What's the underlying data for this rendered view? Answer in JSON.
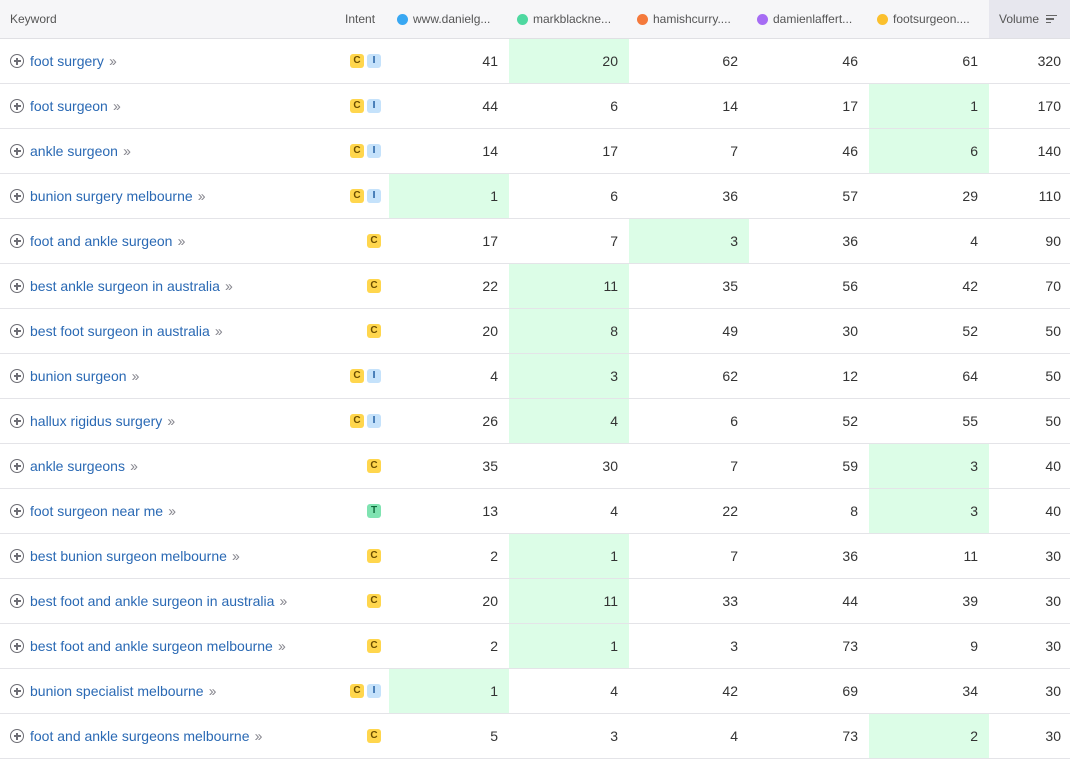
{
  "header": {
    "keyword": "Keyword",
    "intent": "Intent",
    "volume": "Volume",
    "domains": [
      {
        "name": "www.danielg...",
        "color": "#38a7f2"
      },
      {
        "name": "markblackne...",
        "color": "#4ed8a0"
      },
      {
        "name": "hamishcurry....",
        "color": "#f4793b"
      },
      {
        "name": "damienlaffert...",
        "color": "#a66cf4"
      },
      {
        "name": "footsurgeon....",
        "color": "#fbc02d"
      }
    ]
  },
  "rows": [
    {
      "keyword": "foot surgery",
      "intents": [
        "C",
        "I"
      ],
      "ranks": [
        "41",
        "20",
        "62",
        "46",
        "61"
      ],
      "best": 1,
      "volume": "320"
    },
    {
      "keyword": "foot surgeon",
      "intents": [
        "C",
        "I"
      ],
      "ranks": [
        "44",
        "6",
        "14",
        "17",
        "1"
      ],
      "best": 4,
      "volume": "170"
    },
    {
      "keyword": "ankle surgeon",
      "intents": [
        "C",
        "I"
      ],
      "ranks": [
        "14",
        "17",
        "7",
        "46",
        "6"
      ],
      "best": 4,
      "volume": "140"
    },
    {
      "keyword": "bunion surgery melbourne",
      "intents": [
        "C",
        "I"
      ],
      "ranks": [
        "1",
        "6",
        "36",
        "57",
        "29"
      ],
      "best": 0,
      "volume": "110"
    },
    {
      "keyword": "foot and ankle surgeon",
      "intents": [
        "C"
      ],
      "ranks": [
        "17",
        "7",
        "3",
        "36",
        "4"
      ],
      "best": 2,
      "volume": "90"
    },
    {
      "keyword": "best ankle surgeon in australia",
      "intents": [
        "C"
      ],
      "ranks": [
        "22",
        "11",
        "35",
        "56",
        "42"
      ],
      "best": 1,
      "volume": "70"
    },
    {
      "keyword": "best foot surgeon in australia",
      "intents": [
        "C"
      ],
      "ranks": [
        "20",
        "8",
        "49",
        "30",
        "52"
      ],
      "best": 1,
      "volume": "50"
    },
    {
      "keyword": "bunion surgeon",
      "intents": [
        "C",
        "I"
      ],
      "ranks": [
        "4",
        "3",
        "62",
        "12",
        "64"
      ],
      "best": 1,
      "volume": "50"
    },
    {
      "keyword": "hallux rigidus surgery",
      "intents": [
        "C",
        "I"
      ],
      "ranks": [
        "26",
        "4",
        "6",
        "52",
        "55"
      ],
      "best": 1,
      "volume": "50"
    },
    {
      "keyword": "ankle surgeons",
      "intents": [
        "C"
      ],
      "ranks": [
        "35",
        "30",
        "7",
        "59",
        "3"
      ],
      "best": 4,
      "volume": "40"
    },
    {
      "keyword": "foot surgeon near me",
      "intents": [
        "T"
      ],
      "ranks": [
        "13",
        "4",
        "22",
        "8",
        "3"
      ],
      "best": 4,
      "volume": "40"
    },
    {
      "keyword": "best bunion surgeon melbourne",
      "intents": [
        "C"
      ],
      "ranks": [
        "2",
        "1",
        "7",
        "36",
        "11"
      ],
      "best": 1,
      "volume": "30"
    },
    {
      "keyword": "best foot and ankle surgeon in australia",
      "intents": [
        "C"
      ],
      "ranks": [
        "20",
        "11",
        "33",
        "44",
        "39"
      ],
      "best": 1,
      "volume": "30"
    },
    {
      "keyword": "best foot and ankle surgeon melbourne",
      "intents": [
        "C"
      ],
      "ranks": [
        "2",
        "1",
        "3",
        "73",
        "9"
      ],
      "best": 1,
      "volume": "30"
    },
    {
      "keyword": "bunion specialist melbourne",
      "intents": [
        "C",
        "I"
      ],
      "ranks": [
        "1",
        "4",
        "42",
        "69",
        "34"
      ],
      "best": 0,
      "volume": "30"
    },
    {
      "keyword": "foot and ankle surgeons melbourne",
      "intents": [
        "C"
      ],
      "ranks": [
        "5",
        "3",
        "4",
        "73",
        "2"
      ],
      "best": 4,
      "volume": "30"
    }
  ]
}
